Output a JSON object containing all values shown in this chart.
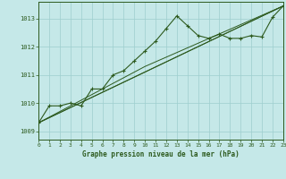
{
  "title": "Graphe pression niveau de la mer (hPa)",
  "background_color": "#c5e8e8",
  "grid_color": "#9ecece",
  "line_color": "#2d5a1e",
  "xlim": [
    0,
    23
  ],
  "ylim": [
    1008.7,
    1013.6
  ],
  "yticks": [
    1009,
    1010,
    1011,
    1012,
    1013
  ],
  "xticks": [
    0,
    1,
    2,
    3,
    4,
    5,
    6,
    7,
    8,
    9,
    10,
    11,
    12,
    13,
    14,
    15,
    16,
    17,
    18,
    19,
    20,
    21,
    22,
    23
  ],
  "series1": [
    [
      0,
      1009.3
    ],
    [
      1,
      1009.9
    ],
    [
      2,
      1009.9
    ],
    [
      3,
      1010.0
    ],
    [
      4,
      1009.9
    ],
    [
      5,
      1010.5
    ],
    [
      6,
      1010.5
    ],
    [
      7,
      1011.0
    ],
    [
      8,
      1011.15
    ],
    [
      9,
      1011.5
    ],
    [
      10,
      1011.85
    ],
    [
      11,
      1012.2
    ],
    [
      12,
      1012.65
    ],
    [
      13,
      1013.1
    ],
    [
      14,
      1012.75
    ],
    [
      15,
      1012.4
    ],
    [
      16,
      1012.3
    ],
    [
      17,
      1012.45
    ],
    [
      18,
      1012.3
    ],
    [
      19,
      1012.3
    ],
    [
      20,
      1012.4
    ],
    [
      21,
      1012.35
    ],
    [
      22,
      1013.05
    ],
    [
      23,
      1013.45
    ]
  ],
  "series2": [
    [
      0,
      1009.3
    ],
    [
      23,
      1013.45
    ]
  ],
  "series3": [
    [
      0,
      1009.3
    ],
    [
      10,
      1011.3
    ],
    [
      23,
      1013.45
    ]
  ],
  "series4": [
    [
      0,
      1009.3
    ],
    [
      10,
      1011.1
    ],
    [
      23,
      1013.45
    ]
  ]
}
